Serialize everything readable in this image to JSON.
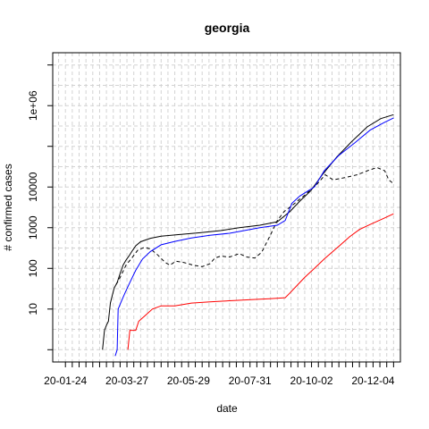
{
  "chart_data": {
    "type": "line",
    "title": "georgia",
    "xlabel": "date",
    "ylabel": "# confirmed cases",
    "y_scale": "log10",
    "ylim": [
      0.5,
      20000000
    ],
    "xlim": [
      "2020-01-11",
      "2021-01-01"
    ],
    "x_ticks": [
      {
        "date": "2020-01-24",
        "label": "20-01-24"
      },
      {
        "date": "2020-03-27",
        "label": "20-03-27"
      },
      {
        "date": "2020-05-29",
        "label": "20-05-29"
      },
      {
        "date": "2020-07-31",
        "label": "20-07-31"
      },
      {
        "date": "2020-10-02",
        "label": "20-10-02"
      },
      {
        "date": "2020-12-04",
        "label": "20-12-04"
      }
    ],
    "y_ticks": [
      {
        "value": 10,
        "label": "10"
      },
      {
        "value": 100,
        "label": "100"
      },
      {
        "value": 1000,
        "label": "1000"
      },
      {
        "value": 10000,
        "label": "10000"
      },
      {
        "value": 1000000,
        "label": "1e+06"
      }
    ],
    "grid": true,
    "series": [
      {
        "color": "#000000",
        "dash": "solid",
        "points": [
          [
            "2020-03-02",
            1
          ],
          [
            "2020-03-04",
            3
          ],
          [
            "2020-03-06",
            4
          ],
          [
            "2020-03-08",
            5
          ],
          [
            "2020-03-10",
            14
          ],
          [
            "2020-03-12",
            22
          ],
          [
            "2020-03-14",
            33
          ],
          [
            "2020-03-17",
            45
          ],
          [
            "2020-03-20",
            75
          ],
          [
            "2020-03-23",
            120
          ],
          [
            "2020-03-26",
            160
          ],
          [
            "2020-03-29",
            200
          ],
          [
            "2020-04-01",
            260
          ],
          [
            "2020-04-05",
            360
          ],
          [
            "2020-04-10",
            450
          ],
          [
            "2020-04-20",
            550
          ],
          [
            "2020-05-01",
            620
          ],
          [
            "2020-05-20",
            680
          ],
          [
            "2020-06-10",
            750
          ],
          [
            "2020-07-01",
            850
          ],
          [
            "2020-07-20",
            1000
          ],
          [
            "2020-08-10",
            1150
          ],
          [
            "2020-08-28",
            1400
          ],
          [
            "2020-09-10",
            2500
          ],
          [
            "2020-09-20",
            4500
          ],
          [
            "2020-10-01",
            8000
          ],
          [
            "2020-10-13",
            20000
          ],
          [
            "2020-10-28",
            55000
          ],
          [
            "2020-11-12",
            130000
          ],
          [
            "2020-11-28",
            300000
          ],
          [
            "2020-12-12",
            480000
          ],
          [
            "2020-12-25",
            600000
          ]
        ]
      },
      {
        "color": "#000000",
        "dash": "dashed",
        "points": [
          [
            "2020-03-16",
            40
          ],
          [
            "2020-03-20",
            60
          ],
          [
            "2020-03-26",
            120
          ],
          [
            "2020-04-01",
            180
          ],
          [
            "2020-04-07",
            280
          ],
          [
            "2020-04-14",
            330
          ],
          [
            "2020-04-20",
            300
          ],
          [
            "2020-04-27",
            220
          ],
          [
            "2020-05-05",
            140
          ],
          [
            "2020-05-10",
            120
          ],
          [
            "2020-05-16",
            150
          ],
          [
            "2020-05-24",
            140
          ],
          [
            "2020-06-03",
            120
          ],
          [
            "2020-06-12",
            110
          ],
          [
            "2020-06-20",
            130
          ],
          [
            "2020-06-25",
            180
          ],
          [
            "2020-07-01",
            200
          ],
          [
            "2020-07-10",
            190
          ],
          [
            "2020-07-20",
            230
          ],
          [
            "2020-07-28",
            190
          ],
          [
            "2020-08-05",
            180
          ],
          [
            "2020-08-12",
            250
          ],
          [
            "2020-08-20",
            600
          ],
          [
            "2020-08-28",
            1500
          ],
          [
            "2020-09-04",
            2500
          ],
          [
            "2020-09-12",
            3500
          ],
          [
            "2020-09-24",
            6000
          ],
          [
            "2020-10-08",
            12000
          ],
          [
            "2020-10-16",
            20000
          ],
          [
            "2020-10-24",
            15000
          ],
          [
            "2020-11-05",
            17000
          ],
          [
            "2020-11-18",
            20000
          ],
          [
            "2020-11-28",
            25000
          ],
          [
            "2020-12-08",
            30000
          ],
          [
            "2020-12-16",
            25000
          ],
          [
            "2020-12-20",
            15000
          ],
          [
            "2020-12-25",
            12000
          ]
        ]
      },
      {
        "color": "#0000ff",
        "dash": "solid",
        "points": [
          [
            "2020-03-15",
            0.7
          ],
          [
            "2020-03-17",
            1
          ],
          [
            "2020-03-18",
            10
          ],
          [
            "2020-03-21",
            15
          ],
          [
            "2020-03-25",
            25
          ],
          [
            "2020-03-30",
            45
          ],
          [
            "2020-04-05",
            90
          ],
          [
            "2020-04-12",
            170
          ],
          [
            "2020-04-20",
            260
          ],
          [
            "2020-05-01",
            380
          ],
          [
            "2020-05-15",
            460
          ],
          [
            "2020-06-01",
            560
          ],
          [
            "2020-06-20",
            650
          ],
          [
            "2020-07-10",
            730
          ],
          [
            "2020-07-25",
            850
          ],
          [
            "2020-08-10",
            1000
          ],
          [
            "2020-08-28",
            1150
          ],
          [
            "2020-09-05",
            1500
          ],
          [
            "2020-09-12",
            4000
          ],
          [
            "2020-09-20",
            6000
          ],
          [
            "2020-10-05",
            10000
          ],
          [
            "2020-10-15",
            25000
          ],
          [
            "2020-10-30",
            60000
          ],
          [
            "2020-11-15",
            120000
          ],
          [
            "2020-12-01",
            250000
          ],
          [
            "2020-12-15",
            380000
          ],
          [
            "2020-12-25",
            500000
          ]
        ]
      },
      {
        "color": "#ff0000",
        "dash": "solid",
        "points": [
          [
            "2020-03-28",
            1
          ],
          [
            "2020-03-30",
            3
          ],
          [
            "2020-04-05",
            3
          ],
          [
            "2020-04-08",
            5
          ],
          [
            "2020-04-15",
            7
          ],
          [
            "2020-04-22",
            10
          ],
          [
            "2020-05-01",
            12
          ],
          [
            "2020-05-15",
            12
          ],
          [
            "2020-06-01",
            14
          ],
          [
            "2020-06-20",
            15
          ],
          [
            "2020-07-10",
            16
          ],
          [
            "2020-08-01",
            17
          ],
          [
            "2020-08-20",
            18
          ],
          [
            "2020-09-05",
            19
          ],
          [
            "2020-09-10",
            25
          ],
          [
            "2020-09-18",
            40
          ],
          [
            "2020-09-25",
            60
          ],
          [
            "2020-10-05",
            100
          ],
          [
            "2020-10-15",
            170
          ],
          [
            "2020-10-30",
            350
          ],
          [
            "2020-11-10",
            600
          ],
          [
            "2020-11-20",
            900
          ],
          [
            "2020-12-01",
            1200
          ],
          [
            "2020-12-15",
            1700
          ],
          [
            "2020-12-25",
            2200
          ]
        ]
      }
    ]
  }
}
